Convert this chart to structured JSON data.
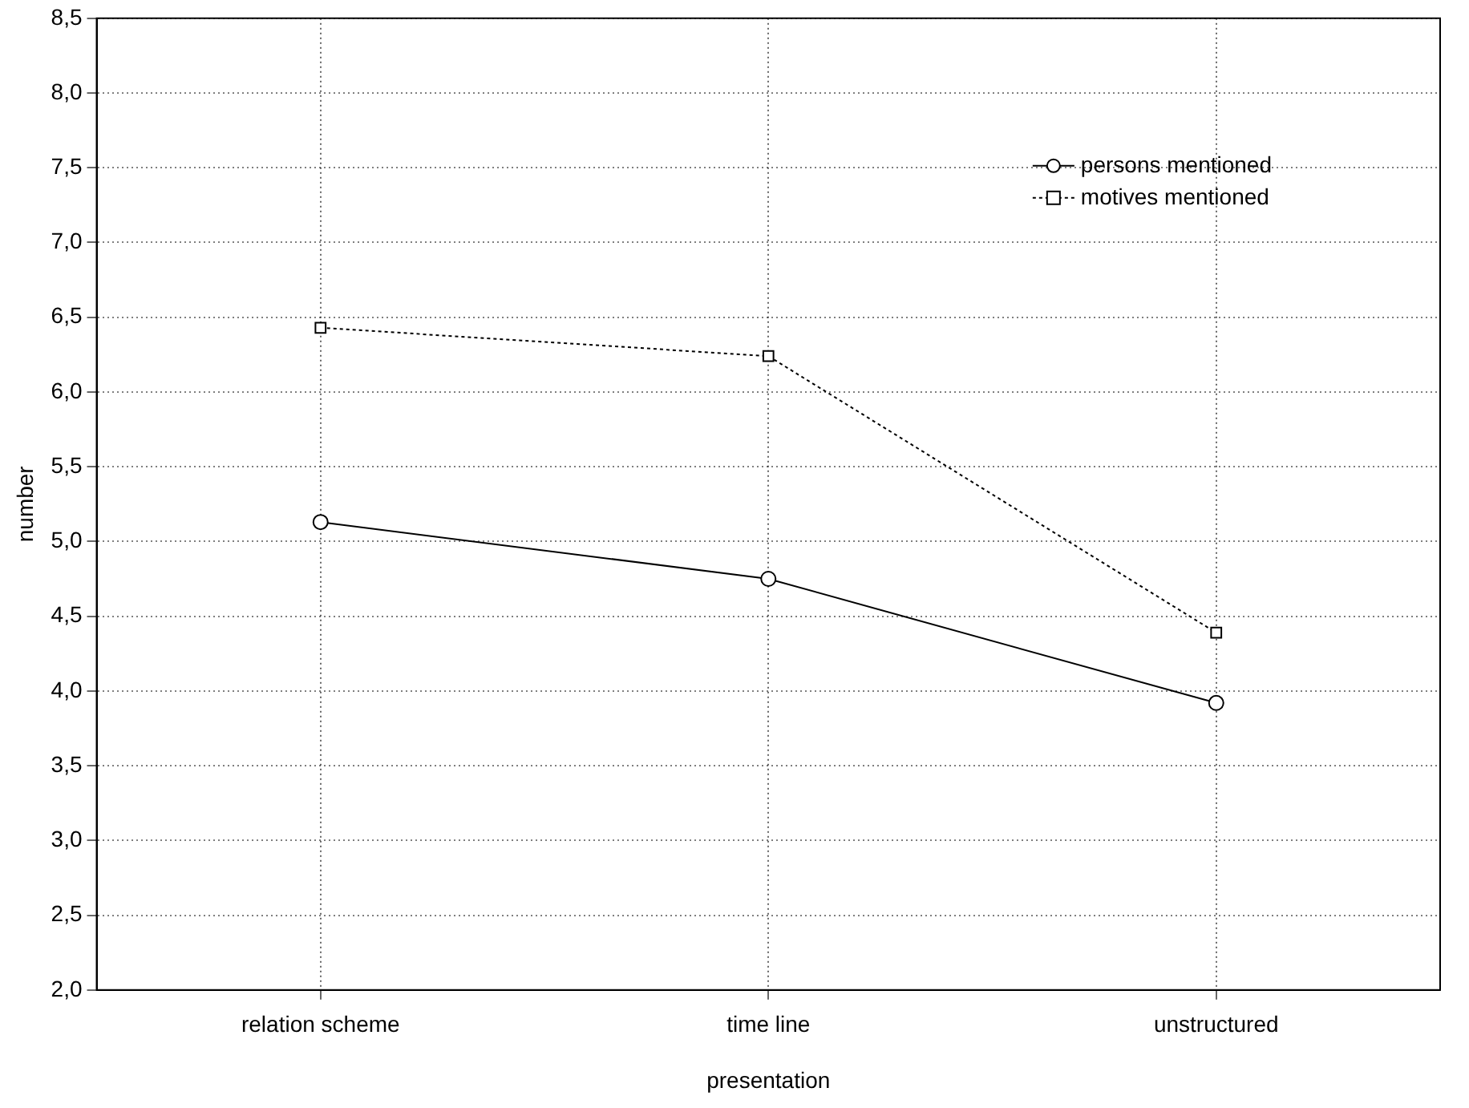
{
  "chart_data": {
    "type": "line",
    "xlabel": "presentation",
    "ylabel": "number",
    "categories": [
      "relation scheme",
      "time line",
      "unstructured"
    ],
    "series": [
      {
        "name": "persons mentioned",
        "color": "#000000",
        "values": [
          5.13,
          4.75,
          3.92
        ],
        "marker": "circle",
        "line_style": "solid"
      },
      {
        "name": "motives mentioned",
        "color": "#000000",
        "values": [
          6.43,
          6.24,
          4.39
        ],
        "marker": "square",
        "line_style": "dotted"
      }
    ],
    "ylim": [
      2,
      8.5
    ],
    "yticks": [
      {
        "value": 2,
        "label": "2,0"
      },
      {
        "value": 2.5,
        "label": "2,5"
      },
      {
        "value": 3,
        "label": "3,0"
      },
      {
        "value": 3.5,
        "label": "3,5"
      },
      {
        "value": 4,
        "label": "4,0"
      },
      {
        "value": 4.5,
        "label": "4,5"
      },
      {
        "value": 5,
        "label": "5,0"
      },
      {
        "value": 5.5,
        "label": "5,5"
      },
      {
        "value": 6,
        "label": "6,0"
      },
      {
        "value": 6.5,
        "label": "6,5"
      },
      {
        "value": 7,
        "label": "7,0"
      },
      {
        "value": 7.5,
        "label": "7,5"
      },
      {
        "value": 8,
        "label": "8,0"
      },
      {
        "value": 8.5,
        "label": "8,5"
      }
    ],
    "grid": true,
    "legend": "top right"
  }
}
